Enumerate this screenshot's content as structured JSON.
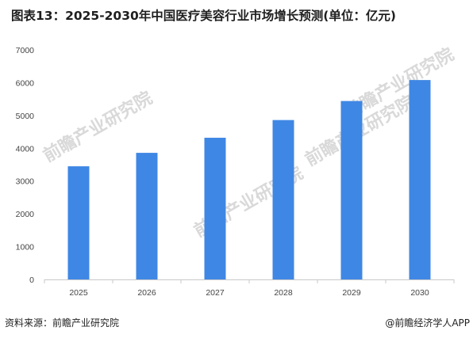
{
  "title": "图表13：2025-2030年中国医疗美容行业市场增长预测(单位：亿元)",
  "footer": {
    "source": "资料来源：前瞻产业研究院",
    "app": "@前瞻经济学人APP"
  },
  "watermark": "前瞻产业研究院",
  "colors": {
    "bar": "#3f87e4",
    "axis": "#c8c8c8"
  },
  "chart_data": {
    "type": "bar",
    "categories": [
      "2025",
      "2026",
      "2027",
      "2028",
      "2029",
      "2030"
    ],
    "values": [
      3450,
      3860,
      4320,
      4860,
      5440,
      6080
    ],
    "yticks": [
      0,
      1000,
      2000,
      3000,
      4000,
      5000,
      6000,
      7000
    ],
    "ylim": [
      0,
      7000
    ],
    "grid": false
  }
}
